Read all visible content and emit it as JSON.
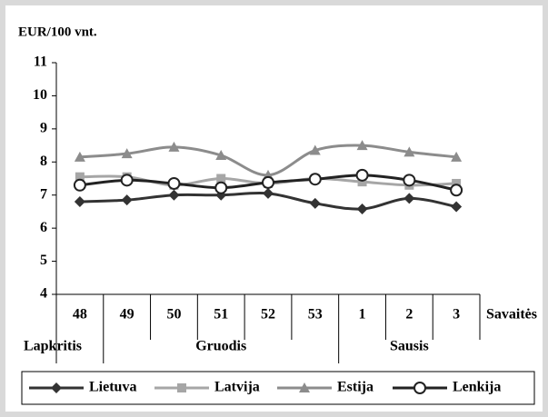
{
  "chart_data": {
    "type": "line",
    "y_label": "EUR/100 vnt.",
    "x_label": "Savaitės",
    "categories": [
      "48",
      "49",
      "50",
      "51",
      "52",
      "53",
      "1",
      "2",
      "3"
    ],
    "x_groups": [
      "Lapkritis",
      "Gruodis",
      "Sausis"
    ],
    "ylim": [
      4,
      11
    ],
    "yticks": [
      4,
      5,
      6,
      7,
      8,
      9,
      10,
      11
    ],
    "grid": false,
    "legend": "bottom",
    "series": [
      {
        "name": "Lietuva",
        "color": "#333333",
        "marker": "diamond",
        "values": [
          6.8,
          6.85,
          7.0,
          7.0,
          7.05,
          6.75,
          6.58,
          6.9,
          6.65
        ]
      },
      {
        "name": "Latvija",
        "color": "#a6a6a6",
        "marker": "square",
        "values": [
          7.55,
          7.55,
          7.3,
          7.5,
          7.35,
          7.5,
          7.4,
          7.3,
          7.35
        ]
      },
      {
        "name": "Estija",
        "color": "#8c8c8c",
        "marker": "triangle",
        "values": [
          8.15,
          8.25,
          8.45,
          8.2,
          7.6,
          8.35,
          8.5,
          8.3,
          8.15
        ]
      },
      {
        "name": "Lenkija",
        "color": "#222222",
        "marker": "circle",
        "values": [
          7.3,
          7.45,
          7.35,
          7.22,
          7.38,
          7.48,
          7.6,
          7.45,
          7.15
        ]
      }
    ]
  }
}
